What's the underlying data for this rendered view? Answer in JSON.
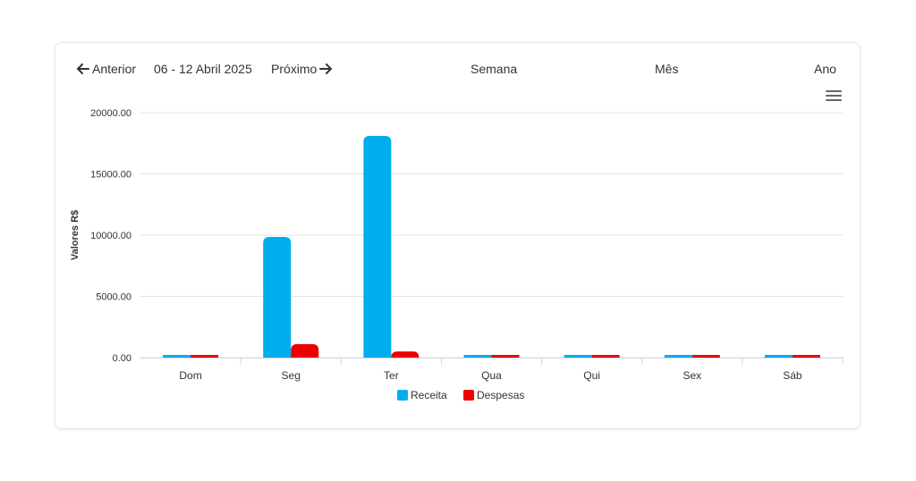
{
  "toolbar": {
    "prev_label": "Anterior",
    "period": "06 - 12 Abril 2025",
    "next_label": "Próximo",
    "ranges": [
      "Semana",
      "Mês",
      "Ano"
    ]
  },
  "menu": {
    "icon": "hamburger-menu-icon"
  },
  "chart_data": {
    "type": "bar",
    "categories": [
      "Dom",
      "Seg",
      "Ter",
      "Qua",
      "Qui",
      "Sex",
      "Sáb"
    ],
    "series": [
      {
        "name": "Receita",
        "color": "#00AEEF",
        "values": [
          0,
          9850,
          18100,
          0,
          0,
          0,
          0
        ]
      },
      {
        "name": "Despesas",
        "color": "#EE0000",
        "values": [
          0,
          1100,
          500,
          0,
          0,
          0,
          0
        ]
      }
    ],
    "ylabel": "Valores R$",
    "xlabel": "",
    "ylim": [
      0,
      20000
    ],
    "yticks": [
      "0.00",
      "5000.00",
      "10000.00",
      "15000.00",
      "20000.00"
    ],
    "ytick_values": [
      0,
      5000,
      10000,
      15000,
      20000
    ],
    "grid": true,
    "legend": "bottom-center"
  }
}
